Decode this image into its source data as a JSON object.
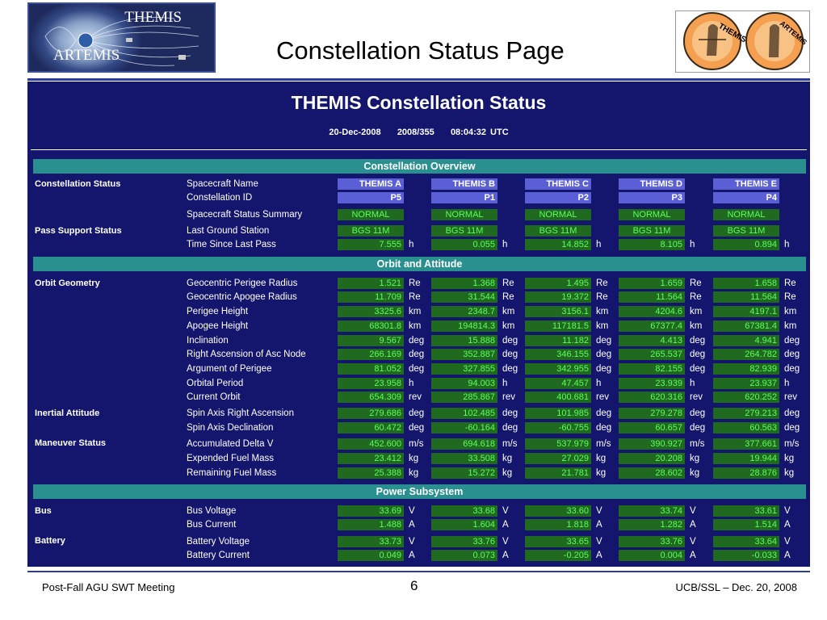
{
  "header": {
    "logo_text_top": "THEMIS",
    "logo_text_bottom": "ARTEMIS",
    "slide_title": "Constellation Status Page",
    "logo_right_1": "THEMIS",
    "logo_right_2": "ARTEMIS"
  },
  "panel": {
    "title": "THEMIS Constellation Status",
    "date": "20-Dec-2008",
    "doy": "2008/355",
    "time": "08:04:32 UTC"
  },
  "sections": [
    {
      "title": "Constellation Overview"
    },
    {
      "title": "Orbit and Attitude"
    },
    {
      "title": "Power Subsystem"
    }
  ],
  "groups": [
    "Constellation Status",
    "Pass Support Status",
    "Orbit Geometry",
    "Inertial Attitude",
    "Maneuver Status",
    "Bus",
    "Battery"
  ],
  "rows": [
    {
      "label": "Spacecraft Name",
      "unit": "",
      "values": [
        "THEMIS A",
        "THEMIS B",
        "THEMIS C",
        "THEMIS D",
        "THEMIS E"
      ]
    },
    {
      "label": "Constellation ID",
      "unit": "",
      "values": [
        "P5",
        "P1",
        "P2",
        "P3",
        "P4"
      ]
    },
    {
      "label": "Spacecraft Status Summary",
      "unit": "",
      "values": [
        "NORMAL",
        "NORMAL",
        "NORMAL",
        "NORMAL",
        "NORMAL"
      ]
    },
    {
      "label": "Last Ground Station",
      "unit": "",
      "values": [
        "BGS 11M",
        "BGS 11M",
        "BGS 11M",
        "BGS 11M",
        "BGS 11M"
      ]
    },
    {
      "label": "Time Since Last Pass",
      "unit": "h",
      "values": [
        "7.555",
        "0.055",
        "14.852",
        "8.105",
        "0.894"
      ]
    },
    {
      "label": "Geocentric Perigee Radius",
      "unit": "Re",
      "values": [
        "1.521",
        "1.368",
        "1.495",
        "1.659",
        "1.658"
      ]
    },
    {
      "label": "Geocentric Apogee Radius",
      "unit": "Re",
      "values": [
        "11.709",
        "31.544",
        "19.372",
        "11.564",
        "11.564"
      ]
    },
    {
      "label": "Perigee Height",
      "unit": "km",
      "values": [
        "3325.6",
        "2348.7",
        "3156.1",
        "4204.6",
        "4197.1"
      ]
    },
    {
      "label": "Apogee Height",
      "unit": "km",
      "values": [
        "68301.8",
        "194814.3",
        "117181.5",
        "67377.4",
        "67381.4"
      ]
    },
    {
      "label": "Inclination",
      "unit": "deg",
      "values": [
        "9.567",
        "15.888",
        "11.182",
        "4.413",
        "4.941"
      ]
    },
    {
      "label": "Right Ascension of Asc Node",
      "unit": "deg",
      "values": [
        "266.169",
        "352.887",
        "346.155",
        "265.537",
        "264.782"
      ]
    },
    {
      "label": "Argument of Perigee",
      "unit": "deg",
      "values": [
        "81.052",
        "327.855",
        "342.955",
        "82.155",
        "82.939"
      ]
    },
    {
      "label": "Orbital Period",
      "unit": "h",
      "values": [
        "23.958",
        "94.003",
        "47.457",
        "23.939",
        "23.937"
      ]
    },
    {
      "label": "Current Orbit",
      "unit": "rev",
      "values": [
        "654.309",
        "285.867",
        "400.681",
        "620.316",
        "620.252"
      ]
    },
    {
      "label": "Spin Axis Right Ascension",
      "unit": "deg",
      "values": [
        "279.686",
        "102.485",
        "101.985",
        "279.278",
        "279.213"
      ]
    },
    {
      "label": "Spin Axis Declination",
      "unit": "deg",
      "values": [
        "60.472",
        "-60.164",
        "-60.755",
        "60.657",
        "60.563"
      ]
    },
    {
      "label": "Accumulated Delta V",
      "unit": "m/s",
      "values": [
        "452.600",
        "694.618",
        "537.979",
        "390.927",
        "377.661"
      ]
    },
    {
      "label": "Expended Fuel Mass",
      "unit": "kg",
      "values": [
        "23.412",
        "33.508",
        "27.029",
        "20.208",
        "19.944"
      ]
    },
    {
      "label": "Remaining Fuel Mass",
      "unit": "kg",
      "values": [
        "25.388",
        "15.272",
        "21.781",
        "28.602",
        "28.876"
      ]
    },
    {
      "label": "Bus Voltage",
      "unit": "V",
      "values": [
        "33.69",
        "33.68",
        "33.60",
        "33.74",
        "33.61"
      ]
    },
    {
      "label": "Bus Current",
      "unit": "A",
      "values": [
        "1.488",
        "1.604",
        "1.818",
        "1.282",
        "1.514"
      ]
    },
    {
      "label": "Battery Voltage",
      "unit": "V",
      "values": [
        "33.73",
        "33.76",
        "33.65",
        "33.76",
        "33.64"
      ]
    },
    {
      "label": "Battery Current",
      "unit": "A",
      "values": [
        "0.049",
        "0.073",
        "-0.205",
        "0.004",
        "-0.033"
      ]
    }
  ],
  "footer": {
    "left": "Post-Fall AGU SWT Meeting",
    "page": "6",
    "right": "UCB/SSL – Dec. 20, 2008"
  },
  "colors": {
    "panel_bg": "#14166e",
    "section_bar": "#2a8f8f",
    "value_bg": "#1f6a1f",
    "value_text": "#5dff5d",
    "id_cell_bg": "#5b5fd6"
  }
}
